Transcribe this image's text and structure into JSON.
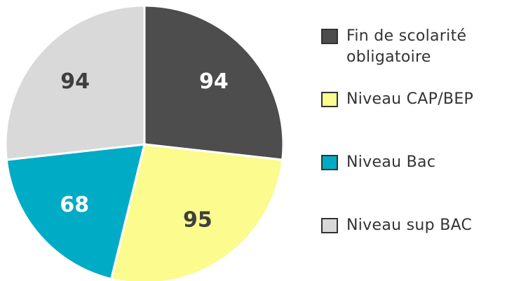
{
  "chart_data": {
    "type": "pie",
    "categories": [
      "Fin de scolarité obligatoire",
      "Niveau CAP/BEP",
      "Niveau Bac",
      "Niveau sup BAC"
    ],
    "values": [
      94,
      95,
      68,
      94
    ],
    "colors": [
      "#4d4d4d",
      "#fbfb8e",
      "#00abc5",
      "#d9d9d9"
    ],
    "label_colors": [
      "#ffffff",
      "#3f3f3f",
      "#ffffff",
      "#3f3f3f"
    ],
    "legend": "right"
  }
}
